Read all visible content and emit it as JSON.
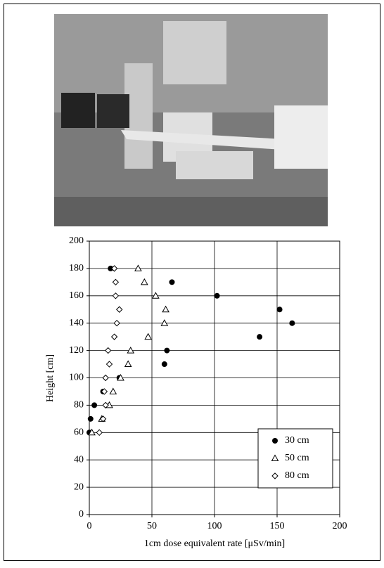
{
  "chart_data": {
    "type": "scatter",
    "xlabel": "1cm dose equivalent rate [μSv/min]",
    "ylabel": "Height [cm]",
    "xlim": [
      0,
      200
    ],
    "xticks": [
      0,
      50,
      100,
      150,
      200
    ],
    "ylim": [
      0,
      200
    ],
    "yticks": [
      0,
      20,
      40,
      60,
      80,
      100,
      120,
      140,
      160,
      180,
      200
    ],
    "grid": true,
    "legend": "lower right",
    "series": [
      {
        "name": "30 cm",
        "marker": "circle",
        "color": "#000000",
        "x": [
          17,
          66,
          102,
          152,
          162,
          136,
          62,
          60,
          24,
          11,
          4,
          1,
          0
        ],
        "values": [
          180,
          170,
          160,
          150,
          140,
          130,
          120,
          110,
          100,
          90,
          80,
          70,
          60
        ]
      },
      {
        "name": "50 cm",
        "marker": "triangle",
        "color": "#000000",
        "x": [
          39,
          44,
          53,
          61,
          60,
          47,
          33,
          31,
          25,
          19,
          16,
          10,
          2
        ],
        "values": [
          180,
          170,
          160,
          150,
          140,
          130,
          120,
          110,
          100,
          90,
          80,
          70,
          60
        ]
      },
      {
        "name": "80 cm",
        "marker": "diamond",
        "color": "#000000",
        "x": [
          20,
          21,
          21,
          24,
          22,
          20,
          15,
          16,
          13,
          12,
          13,
          11,
          8
        ],
        "values": [
          180,
          170,
          160,
          150,
          140,
          130,
          120,
          110,
          100,
          90,
          80,
          70,
          60
        ]
      }
    ]
  }
}
